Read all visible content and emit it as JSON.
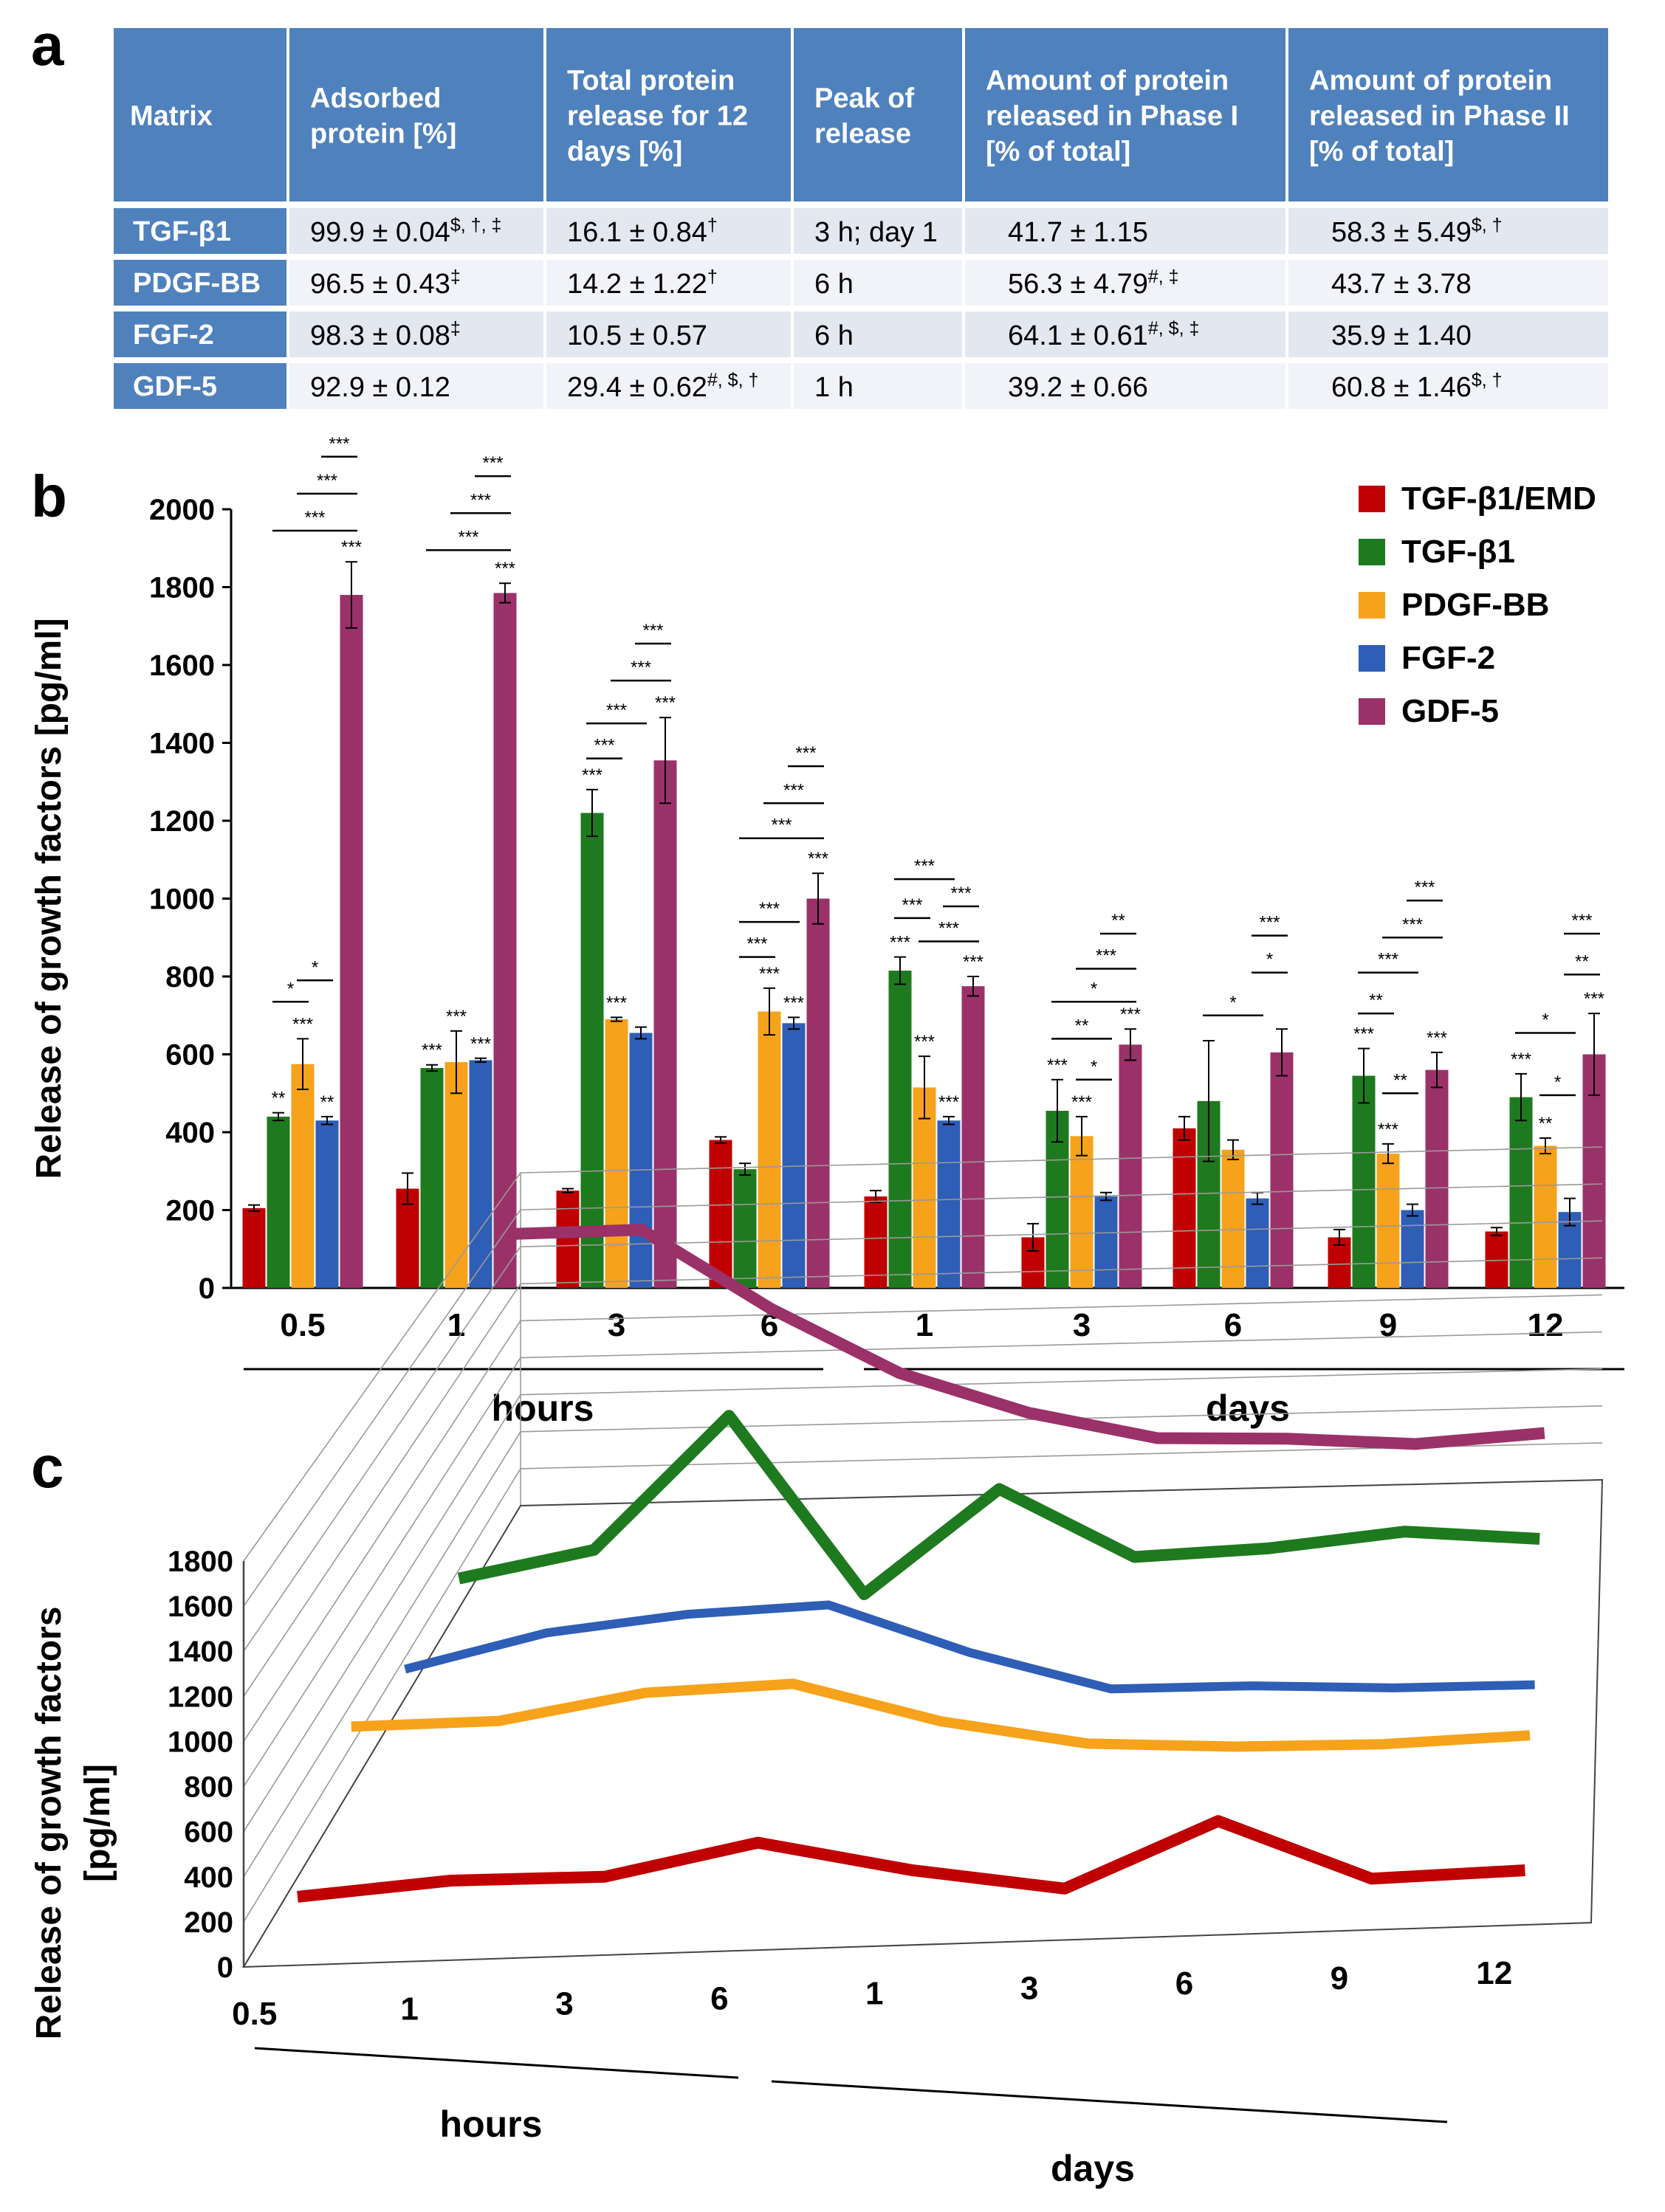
{
  "panels": {
    "a": "a",
    "b": "b",
    "c": "c"
  },
  "colors": {
    "header_bg": "#4F81BD",
    "row_label_bg": "#4F81BD",
    "row_bg_1": "#E2E7F0",
    "row_bg_2": "#F1F3F8",
    "series": [
      "#C00000",
      "#1E7A1E",
      "#F7A21B",
      "#2E5EB6",
      "#9B3169"
    ]
  },
  "table": {
    "headers": [
      [
        "Matrix"
      ],
      [
        "Adsorbed",
        "protein [%]"
      ],
      [
        "Total protein",
        "release for 12",
        "days [%]"
      ],
      [
        "Peak of",
        "release"
      ],
      [
        "Amount of protein",
        "released in Phase I",
        "[% of total]"
      ],
      [
        "Amount of protein",
        "released in Phase II",
        "[% of total]"
      ]
    ],
    "rows": [
      {
        "matrix": "TGF-β1",
        "cells": [
          [
            "99.9 ± 0.04",
            "$, †, ‡"
          ],
          [
            "16.1 ± 0.84",
            "†"
          ],
          [
            "3 h; day 1",
            ""
          ],
          [
            "41.7 ± 1.15",
            ""
          ],
          [
            "58.3 ± 5.49",
            "$, †"
          ]
        ]
      },
      {
        "matrix": "PDGF-BB",
        "cells": [
          [
            "96.5 ± 0.43",
            "‡"
          ],
          [
            "14.2 ± 1.22",
            "†"
          ],
          [
            "6 h",
            ""
          ],
          [
            "56.3 ± 4.79",
            "#, ‡"
          ],
          [
            "43.7 ± 3.78",
            ""
          ]
        ]
      },
      {
        "matrix": "FGF-2",
        "cells": [
          [
            "98.3 ± 0.08",
            "‡"
          ],
          [
            "10.5 ± 0.57",
            ""
          ],
          [
            "6 h",
            ""
          ],
          [
            "64.1 ± 0.61",
            "#, $, ‡"
          ],
          [
            "35.9 ± 1.40",
            ""
          ]
        ]
      },
      {
        "matrix": "GDF-5",
        "cells": [
          [
            "92.9 ± 0.12",
            ""
          ],
          [
            "29.4 ± 0.62",
            "#, $, †"
          ],
          [
            "1 h",
            ""
          ],
          [
            "39.2 ± 0.66",
            ""
          ],
          [
            "60.8 ± 1.46",
            "$, †"
          ]
        ]
      }
    ]
  },
  "chart_data": [
    {
      "type": "bar",
      "ylabel": "Release of growth factors [pg/ml]",
      "ylim": [
        0,
        2000
      ],
      "yticks": [
        0,
        200,
        400,
        600,
        800,
        1000,
        1200,
        1400,
        1600,
        1800,
        2000
      ],
      "categories": [
        "0.5",
        "1",
        "3",
        "6",
        "1",
        "3",
        "6",
        "9",
        "12"
      ],
      "groups": [
        {
          "label": "hours",
          "from": 0,
          "to": 3
        },
        {
          "label": "days",
          "from": 4,
          "to": 8
        }
      ],
      "legend_position": "top-right",
      "series": [
        {
          "name": "TGF-β1/EMD",
          "values": [
            205,
            255,
            250,
            380,
            235,
            130,
            410,
            130,
            145
          ],
          "errors": [
            8,
            40,
            5,
            8,
            15,
            35,
            30,
            20,
            10
          ]
        },
        {
          "name": "TGF-β1",
          "values": [
            440,
            565,
            1220,
            305,
            815,
            455,
            480,
            545,
            490
          ],
          "errors": [
            10,
            8,
            60,
            15,
            35,
            80,
            155,
            70,
            60
          ]
        },
        {
          "name": "PDGF-BB",
          "values": [
            575,
            580,
            690,
            710,
            515,
            390,
            355,
            345,
            365
          ],
          "errors": [
            65,
            80,
            5,
            60,
            80,
            50,
            25,
            25,
            20
          ]
        },
        {
          "name": "FGF-2",
          "values": [
            430,
            585,
            655,
            680,
            430,
            235,
            230,
            200,
            195
          ],
          "errors": [
            10,
            5,
            15,
            15,
            10,
            10,
            15,
            15,
            35
          ]
        },
        {
          "name": "GDF-5",
          "values": [
            1780,
            1785,
            1355,
            1000,
            775,
            625,
            605,
            560,
            600
          ],
          "errors": [
            85,
            25,
            110,
            65,
            25,
            40,
            60,
            45,
            105
          ]
        }
      ],
      "annotations": {
        "above_bar": [
          {
            "cat": 0,
            "series": 1,
            "text": "**"
          },
          {
            "cat": 0,
            "series": 2,
            "text": "***"
          },
          {
            "cat": 0,
            "series": 3,
            "text": "**"
          },
          {
            "cat": 0,
            "series": 4,
            "text": "***"
          },
          {
            "cat": 1,
            "series": 1,
            "text": "***"
          },
          {
            "cat": 1,
            "series": 2,
            "text": "***"
          },
          {
            "cat": 1,
            "series": 3,
            "text": "***"
          },
          {
            "cat": 1,
            "series": 4,
            "text": "***"
          },
          {
            "cat": 2,
            "series": 1,
            "text": "***"
          },
          {
            "cat": 2,
            "series": 2,
            "text": "***"
          },
          {
            "cat": 2,
            "series": 4,
            "text": "***"
          },
          {
            "cat": 3,
            "series": 2,
            "text": "***"
          },
          {
            "cat": 3,
            "series": 3,
            "text": "***"
          },
          {
            "cat": 3,
            "series": 4,
            "text": "***"
          },
          {
            "cat": 4,
            "series": 1,
            "text": "***"
          },
          {
            "cat": 4,
            "series": 2,
            "text": "***"
          },
          {
            "cat": 4,
            "series": 3,
            "text": "***"
          },
          {
            "cat": 4,
            "series": 4,
            "text": "***"
          },
          {
            "cat": 5,
            "series": 1,
            "text": "***"
          },
          {
            "cat": 5,
            "series": 2,
            "text": "***"
          },
          {
            "cat": 5,
            "series": 4,
            "text": "***"
          },
          {
            "cat": 7,
            "series": 1,
            "text": "***"
          },
          {
            "cat": 7,
            "series": 2,
            "text": "***"
          },
          {
            "cat": 7,
            "series": 4,
            "text": "***"
          },
          {
            "cat": 8,
            "series": 1,
            "text": "***"
          },
          {
            "cat": 8,
            "series": 2,
            "text": "**"
          },
          {
            "cat": 8,
            "series": 4,
            "text": "***"
          }
        ],
        "brackets": [
          {
            "cat": 0,
            "from": 1,
            "to": 2,
            "level": 735,
            "text": "*"
          },
          {
            "cat": 0,
            "from": 2,
            "to": 3,
            "level": 790,
            "text": "*"
          },
          {
            "cat": 0,
            "from": 1,
            "to": 4,
            "level": 1945,
            "text": "***"
          },
          {
            "cat": 0,
            "from": 2,
            "to": 4,
            "level": 2040,
            "text": "***"
          },
          {
            "cat": 0,
            "from": 3,
            "to": 4,
            "level": 2135,
            "text": "***"
          },
          {
            "cat": 1,
            "from": 1,
            "to": 4,
            "level": 1895,
            "text": "***"
          },
          {
            "cat": 1,
            "from": 2,
            "to": 4,
            "level": 1990,
            "text": "***"
          },
          {
            "cat": 1,
            "from": 3,
            "to": 4,
            "level": 2085,
            "text": "***"
          },
          {
            "cat": 2,
            "from": 1,
            "to": 2,
            "level": 1360,
            "text": "***"
          },
          {
            "cat": 2,
            "from": 1,
            "to": 3,
            "level": 1450,
            "text": "***"
          },
          {
            "cat": 2,
            "from": 2,
            "to": 4,
            "level": 1560,
            "text": "***"
          },
          {
            "cat": 2,
            "from": 3,
            "to": 4,
            "level": 1655,
            "text": "***"
          },
          {
            "cat": 3,
            "from": 1,
            "to": 2,
            "level": 850,
            "text": "***"
          },
          {
            "cat": 3,
            "from": 1,
            "to": 3,
            "level": 940,
            "text": "***"
          },
          {
            "cat": 3,
            "from": 1,
            "to": 4,
            "level": 1155,
            "text": "***"
          },
          {
            "cat": 3,
            "from": 2,
            "to": 4,
            "level": 1245,
            "text": "***"
          },
          {
            "cat": 3,
            "from": 3,
            "to": 4,
            "level": 1340,
            "text": "***"
          },
          {
            "cat": 4,
            "from": 1,
            "to": 2,
            "level": 950,
            "text": "***"
          },
          {
            "cat": 4,
            "from": 1,
            "to": 3,
            "level": 1050,
            "text": "***"
          },
          {
            "cat": 4,
            "from": 2,
            "to": 4,
            "level": 890,
            "text": "***"
          },
          {
            "cat": 4,
            "from": 3,
            "to": 4,
            "level": 980,
            "text": "***"
          },
          {
            "cat": 5,
            "from": 1,
            "to": 3,
            "level": 640,
            "text": "**"
          },
          {
            "cat": 5,
            "from": 2,
            "to": 3,
            "level": 535,
            "text": "*"
          },
          {
            "cat": 5,
            "from": 1,
            "to": 4,
            "level": 735,
            "text": "*"
          },
          {
            "cat": 5,
            "from": 2,
            "to": 4,
            "level": 820,
            "text": "***"
          },
          {
            "cat": 5,
            "from": 3,
            "to": 4,
            "level": 910,
            "text": "**"
          },
          {
            "cat": 6,
            "from": 1,
            "to": 3,
            "level": 700,
            "text": "*"
          },
          {
            "cat": 6,
            "from": 3,
            "to": 4,
            "level": 810,
            "text": "*"
          },
          {
            "cat": 6,
            "from": 3,
            "to": 4,
            "level": 905,
            "text": "***"
          },
          {
            "cat": 7,
            "from": 1,
            "to": 2,
            "level": 705,
            "text": "**"
          },
          {
            "cat": 7,
            "from": 2,
            "to": 3,
            "level": 500,
            "text": "**"
          },
          {
            "cat": 7,
            "from": 1,
            "to": 3,
            "level": 810,
            "text": "***"
          },
          {
            "cat": 7,
            "from": 2,
            "to": 4,
            "level": 900,
            "text": "***"
          },
          {
            "cat": 7,
            "from": 3,
            "to": 4,
            "level": 995,
            "text": "***"
          },
          {
            "cat": 8,
            "from": 2,
            "to": 3,
            "level": 495,
            "text": "*"
          },
          {
            "cat": 8,
            "from": 1,
            "to": 3,
            "level": 655,
            "text": "*"
          },
          {
            "cat": 8,
            "from": 3,
            "to": 4,
            "level": 805,
            "text": "**"
          },
          {
            "cat": 8,
            "from": 3,
            "to": 4,
            "level": 910,
            "text": "***"
          }
        ]
      }
    },
    {
      "type": "line",
      "view": "3d",
      "ylabel": "Release of growth factors [pg/ml]",
      "ylim": [
        0,
        1800
      ],
      "yticks": [
        0,
        200,
        400,
        600,
        800,
        1000,
        1200,
        1400,
        1600,
        1800
      ],
      "categories": [
        "0.5",
        "1",
        "3",
        "6",
        "1",
        "3",
        "6",
        "9",
        "12"
      ],
      "groups": [
        {
          "label": "hours",
          "from": 0,
          "to": 3
        },
        {
          "label": "days",
          "from": 4,
          "to": 8
        }
      ],
      "series": [
        {
          "name": "TGF-β1/EMD",
          "values": [
            205,
            255,
            250,
            380,
            235,
            130,
            410,
            130,
            145
          ]
        },
        {
          "name": "PDGF-BB",
          "values": [
            575,
            580,
            690,
            710,
            515,
            390,
            355,
            345,
            365
          ]
        },
        {
          "name": "FGF-2",
          "values": [
            430,
            585,
            655,
            680,
            430,
            235,
            230,
            200,
            195
          ]
        },
        {
          "name": "TGF-β1",
          "values": [
            440,
            565,
            1220,
            305,
            815,
            455,
            480,
            545,
            490
          ]
        },
        {
          "name": "GDF-5",
          "values": [
            1780,
            1785,
            1355,
            1000,
            775,
            625,
            605,
            560,
            600
          ]
        }
      ]
    }
  ]
}
